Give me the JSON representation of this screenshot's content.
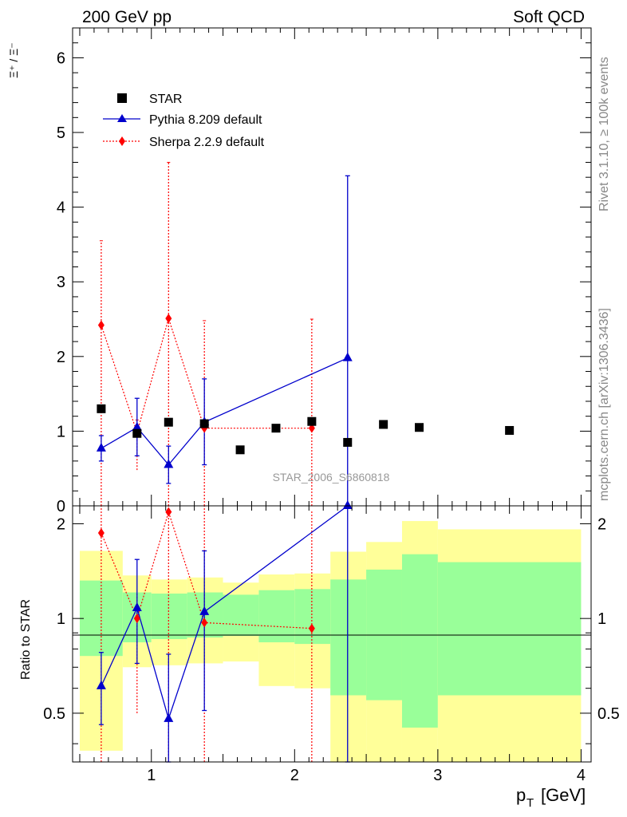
{
  "header": {
    "left": "200 GeV pp",
    "right": "Soft QCD"
  },
  "side": {
    "top": "Rivet 3.1.10, ≥ 100k events",
    "bottom": "mcplots.cern.ch [arXiv:1306.3436]"
  },
  "watermark": "STAR_2006_S6860818",
  "colors": {
    "star": "#000000",
    "pythia": "#0000cc",
    "sherpa": "#ff0000",
    "band_outer": "#ffff99",
    "band_inner": "#99ff99"
  },
  "chart_data": [
    {
      "type": "scatter",
      "ylabel": "Ξ⁺ / Ξ⁻",
      "ylim": [
        0,
        6.4
      ],
      "xlim": [
        0.45,
        4.07
      ],
      "yticks": [
        "0",
        "1",
        "2",
        "3",
        "4",
        "5",
        "6"
      ],
      "legend": {
        "placement": "top-left",
        "entries": [
          "STAR",
          "Pythia 8.209 default",
          "Sherpa 2.2.9 default"
        ]
      },
      "series": [
        {
          "name": "STAR",
          "x": [
            0.65,
            0.9,
            1.12,
            1.37,
            1.62,
            1.87,
            2.12,
            2.37,
            2.62,
            2.87,
            3.5
          ],
          "y": [
            1.3,
            0.97,
            1.12,
            1.1,
            0.75,
            1.04,
            1.13,
            0.85,
            1.09,
            1.05,
            1.01
          ]
        },
        {
          "name": "Pythia 8.209 default",
          "x": [
            0.65,
            0.9,
            1.12,
            1.37,
            2.37
          ],
          "y": [
            0.77,
            1.05,
            0.55,
            1.12,
            1.98
          ],
          "err_low": [
            0.6,
            0.67,
            0.3,
            0.55,
            0.0
          ],
          "err_high": [
            0.94,
            1.44,
            0.8,
            1.7,
            4.42
          ]
        },
        {
          "name": "Sherpa 2.2.9 default",
          "x": [
            0.65,
            0.9,
            1.12,
            1.37,
            2.12
          ],
          "y": [
            2.42,
            0.98,
            2.51,
            1.04,
            1.04
          ],
          "err_low": [
            0.0,
            0.48,
            0.0,
            0.0,
            0.0
          ],
          "err_high": [
            3.55,
            1.15,
            4.6,
            2.48,
            2.5
          ]
        }
      ]
    },
    {
      "type": "area",
      "ylabel": "Ratio to STAR",
      "xlabel": "p_T [GeV]",
      "ylim": [
        0.35,
        2.28
      ],
      "xlim": [
        0.45,
        4.07
      ],
      "yticks": [
        "0.5",
        "1",
        "2"
      ],
      "xticks": [
        "1",
        "2",
        "3",
        "4"
      ],
      "bands": {
        "edges": [
          0.5,
          0.8,
          1.0,
          1.25,
          1.5,
          1.75,
          2.0,
          2.25,
          2.5,
          2.75,
          3.0,
          4.0
        ],
        "outer_low": [
          0.38,
          0.7,
          0.71,
          0.72,
          0.73,
          0.61,
          0.6,
          0.35,
          0.35,
          0.35,
          0.35
        ],
        "outer_high": [
          1.64,
          1.37,
          1.33,
          1.35,
          1.3,
          1.38,
          1.39,
          1.63,
          1.75,
          2.04,
          1.92
        ],
        "inner_low": [
          0.76,
          0.84,
          0.86,
          0.87,
          0.88,
          0.84,
          0.83,
          0.57,
          0.55,
          0.45,
          0.57
        ],
        "inner_high": [
          1.32,
          1.21,
          1.2,
          1.21,
          1.19,
          1.23,
          1.24,
          1.33,
          1.43,
          1.6,
          1.51
        ]
      },
      "series": [
        {
          "name": "Pythia 8.209 default",
          "x": [
            0.65,
            0.9,
            1.12,
            1.37,
            2.37
          ],
          "y": [
            0.61,
            1.08,
            0.48,
            1.05,
            2.28
          ],
          "err_low": [
            0.46,
            0.72,
            0.35,
            0.51,
            0.35
          ],
          "err_high": [
            0.78,
            1.54,
            0.77,
            1.64,
            2.28
          ]
        },
        {
          "name": "Sherpa 2.2.9 default",
          "x": [
            0.65,
            0.9,
            1.12,
            1.37,
            2.12
          ],
          "y": [
            1.87,
            1.0,
            2.18,
            0.97,
            0.93
          ],
          "err_low": [
            0.35,
            0.5,
            0.35,
            0.35,
            0.35
          ],
          "err_high": [
            2.28,
            1.2,
            2.28,
            2.28,
            2.2
          ]
        }
      ]
    }
  ]
}
